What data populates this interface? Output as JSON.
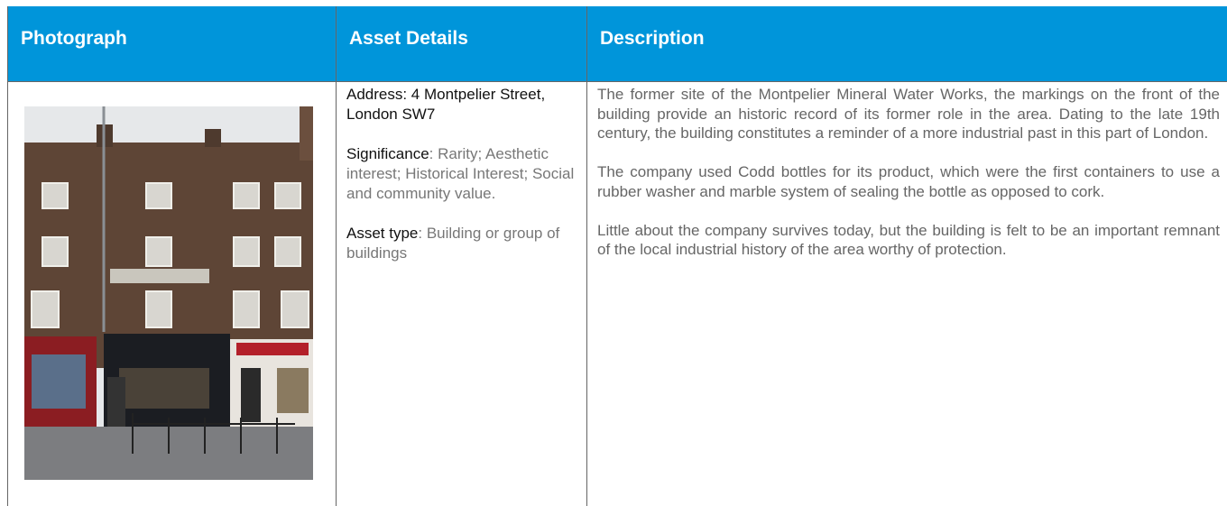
{
  "table": {
    "header": [
      "Photograph",
      "Asset Details",
      "Description"
    ],
    "rows": [
      {
        "details": [
          {
            "label": "Address: 4 Montpelier Street, London SW7"
          },
          {
            "label": "Significance",
            "text": ": Rarity; Aesthetic interest; Historical Interest; Social and community value."
          },
          {
            "label": "Asset type",
            "text": ": Building or group of buildings"
          }
        ],
        "description": [
          "The former site of the Montpelier Mineral Water Works, the markings on the front of the building provide an historic record of its former role in the area. Dating to the late 19th century, the building constitutes a reminder of a more industrial past in this part of London.",
          "The company used Codd bottles for its product, which were the first containers to use a rubber washer and marble system of sealing the bottle as opposed to cork.",
          "Little about the company survives today, but the building is felt to be an important remnant of the local industrial history of the area worthy of protection."
        ]
      }
    ]
  }
}
